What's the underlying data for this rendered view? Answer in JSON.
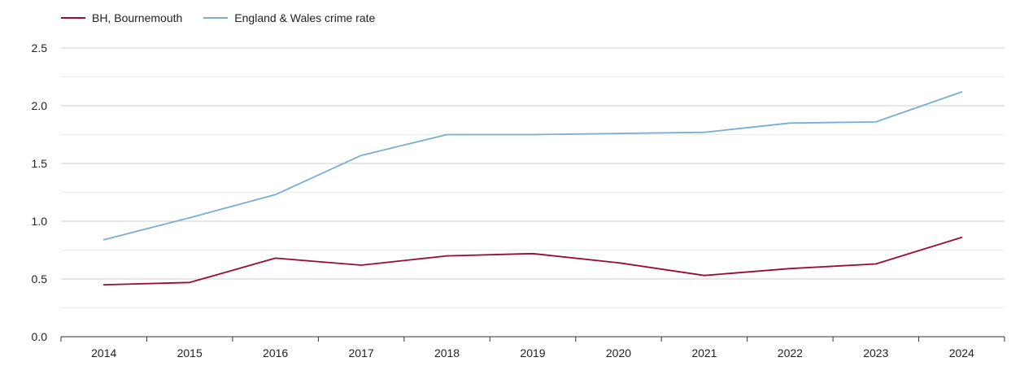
{
  "chart_data": {
    "type": "line",
    "title": "",
    "xlabel": "",
    "ylabel": "",
    "categories": [
      "2014",
      "2015",
      "2016",
      "2017",
      "2018",
      "2019",
      "2020",
      "2021",
      "2022",
      "2023",
      "2024"
    ],
    "ylim": [
      0,
      2.5
    ],
    "yticks": [
      "0.0",
      "0.5",
      "1.0",
      "1.5",
      "2.0",
      "2.5"
    ],
    "grid": true,
    "legend_position": "top-left",
    "series": [
      {
        "name": "BH, Bournemouth",
        "color": "#9b0a33",
        "values": [
          0.45,
          0.47,
          0.68,
          0.62,
          0.7,
          0.72,
          0.64,
          0.53,
          0.59,
          0.63,
          0.86
        ]
      },
      {
        "name": "England & Wales crime rate",
        "color": "#7aaed0",
        "values": [
          0.84,
          1.03,
          1.23,
          1.57,
          1.75,
          1.75,
          1.76,
          1.77,
          1.85,
          1.86,
          2.12
        ]
      }
    ]
  }
}
